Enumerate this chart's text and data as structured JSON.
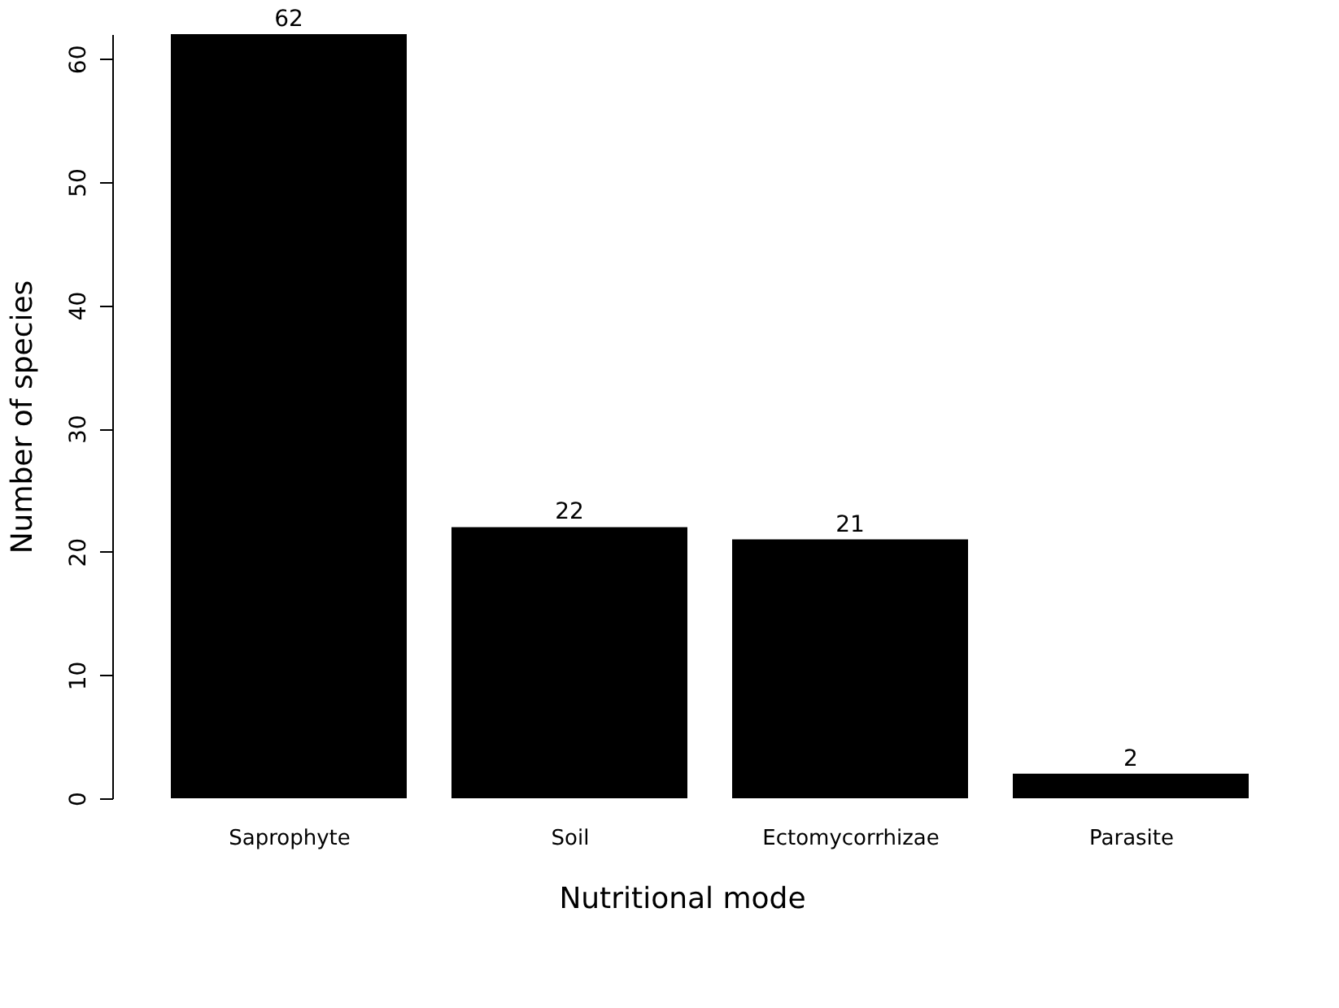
{
  "chart_data": {
    "type": "bar",
    "xlabel": "Nutritional mode",
    "ylabel": "Number of species",
    "categories": [
      "Saprophyte",
      "Soil",
      "Ectomycorrhizae",
      "Parasite"
    ],
    "values": [
      62,
      22,
      21,
      2
    ],
    "color": "#000000",
    "ylim": [
      0,
      62
    ],
    "yticks": [
      0,
      10,
      20,
      30,
      40,
      50,
      60
    ],
    "grid": false,
    "data_labels": true
  }
}
